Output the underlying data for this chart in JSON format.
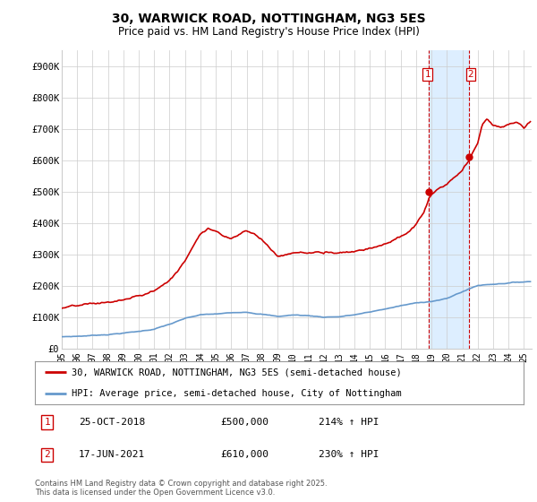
{
  "title": "30, WARWICK ROAD, NOTTINGHAM, NG3 5ES",
  "subtitle": "Price paid vs. HM Land Registry's House Price Index (HPI)",
  "hpi_label": "HPI: Average price, semi-detached house, City of Nottingham",
  "property_label": "30, WARWICK ROAD, NOTTINGHAM, NG3 5ES (semi-detached house)",
  "footer": "Contains HM Land Registry data © Crown copyright and database right 2025.\nThis data is licensed under the Open Government Licence v3.0.",
  "sale1_label": "25-OCT-2018",
  "sale1_price": "£500,000",
  "sale1_hpi": "214% ↑ HPI",
  "sale2_label": "17-JUN-2021",
  "sale2_price": "£610,000",
  "sale2_hpi": "230% ↑ HPI",
  "property_color": "#cc0000",
  "hpi_color": "#6699cc",
  "sale_marker_color": "#cc0000",
  "highlight_color": "#ddeeff",
  "vline_color": "#cc0000",
  "grid_color": "#cccccc",
  "background_color": "#ffffff",
  "ylim": [
    0,
    950000
  ],
  "yticks": [
    0,
    100000,
    200000,
    300000,
    400000,
    500000,
    600000,
    700000,
    800000,
    900000
  ],
  "ytick_labels": [
    "£0",
    "£100K",
    "£200K",
    "£300K",
    "£400K",
    "£500K",
    "£600K",
    "£700K",
    "£800K",
    "£900K"
  ],
  "sale1_x": 2018.82,
  "sale1_y": 500000,
  "sale2_x": 2021.46,
  "sale2_y": 610000,
  "xlim_left": 1995.0,
  "xlim_right": 2025.5
}
